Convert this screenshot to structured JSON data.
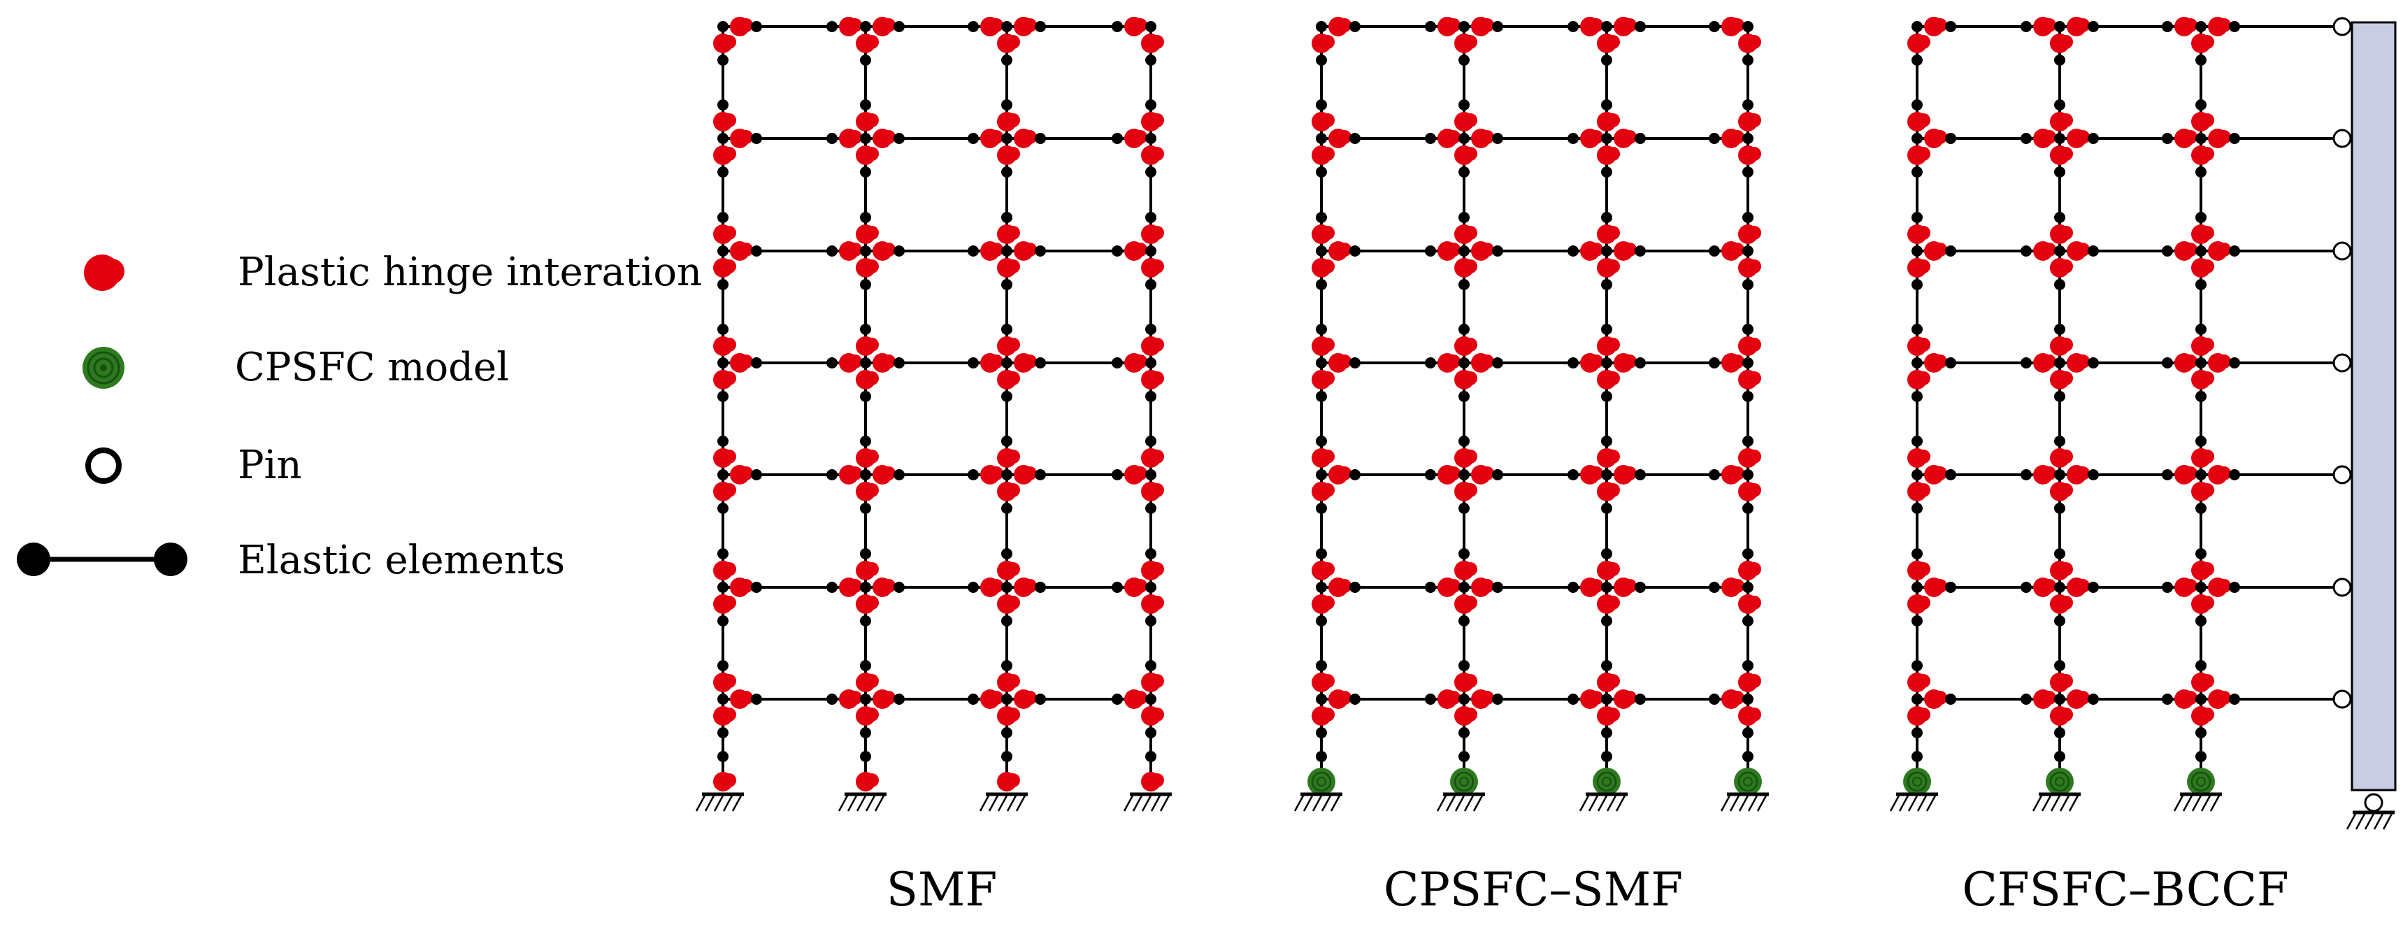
{
  "legend": [
    {
      "symbol": "plastic-hinge",
      "label": "Plastic hinge interation"
    },
    {
      "symbol": "cpsfc-model",
      "label": "CPSFC model"
    },
    {
      "symbol": "pin",
      "label": "Pin"
    },
    {
      "symbol": "elastic-element",
      "label": "Elastic elements"
    }
  ],
  "frames": [
    {
      "caption": "SMF",
      "base": "plastic-hinge",
      "leaning_column": false
    },
    {
      "caption": "CPSFC–SMF",
      "base": "cpsfc-model",
      "leaning_column": false
    },
    {
      "caption": "CFSFC–BCCF",
      "base": "cpsfc-model",
      "leaning_column": true
    }
  ],
  "stories": 7,
  "bays": 3,
  "colors": {
    "hinge": "#e3000f",
    "cpsfc": "#2d7a1f",
    "element": "#000000",
    "leaning_fill": "#c9cde3"
  }
}
